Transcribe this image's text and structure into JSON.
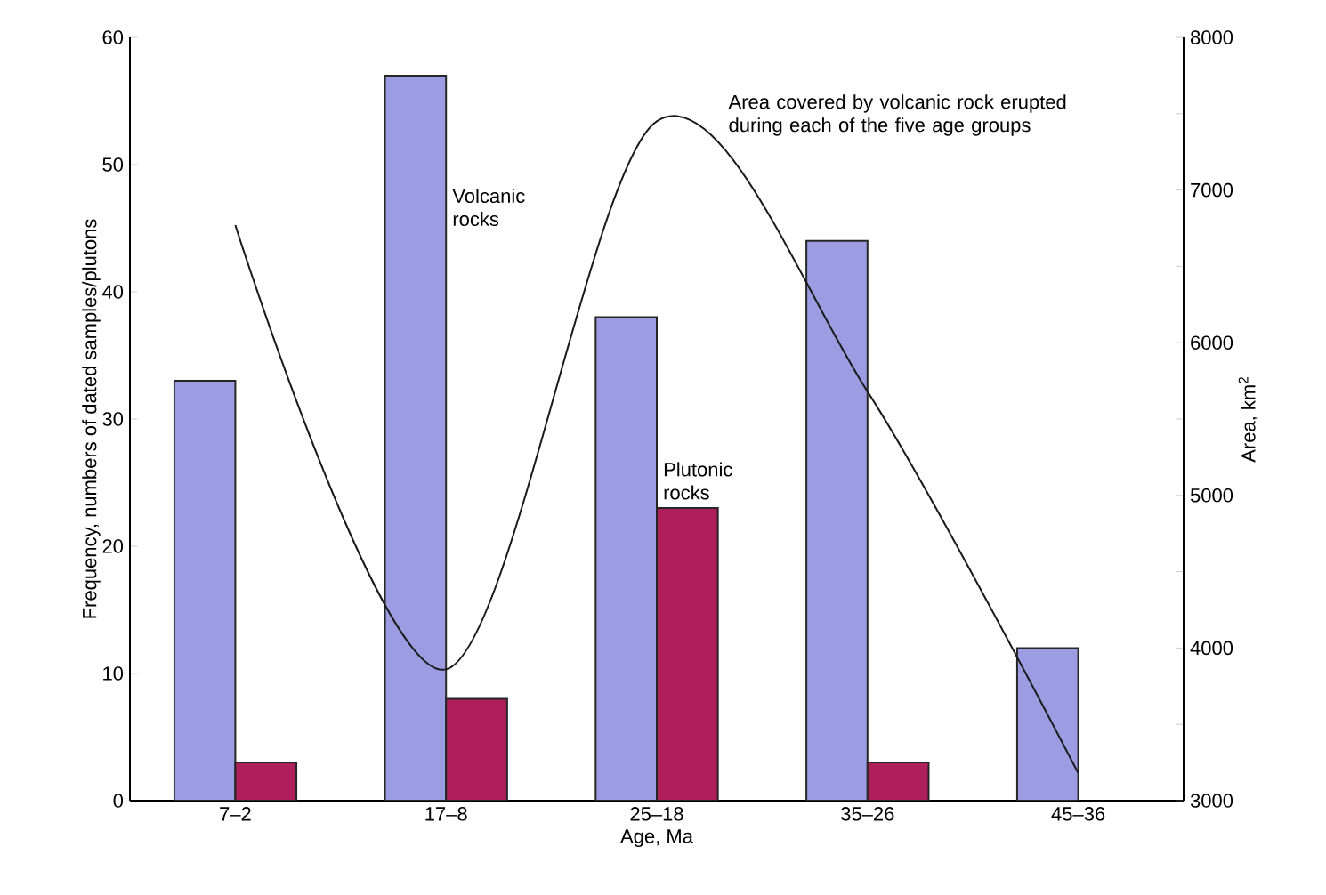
{
  "chart_data": {
    "type": "bar",
    "xlabel": "Age, Ma",
    "ylabel": "Frequency, numbers of dated samples/plutons",
    "y2label": "Area, km$^{2}$",
    "categories": [
      "7–2",
      "17–8",
      "25–18",
      "35–26",
      "45–36"
    ],
    "series": [
      {
        "name": "Volcanic rocks",
        "color": "#9c9ce2",
        "values": [
          33,
          57,
          38,
          44,
          12
        ]
      },
      {
        "name": "Plutonic rocks",
        "color": "#ae1f5c",
        "values": [
          3,
          8,
          23,
          3,
          null
        ]
      },
      {
        "name": "Area covered by volcanic rock erupted during each of the five age groups",
        "type": "line",
        "axis": "y2",
        "color": "#1a1a1a",
        "values": [
          6770,
          3860,
          7450,
          5680,
          3180
        ]
      }
    ],
    "ylim": [
      0,
      60
    ],
    "yticks": [
      0,
      10,
      20,
      30,
      40,
      50,
      60
    ],
    "y2lim": [
      3000,
      8000
    ],
    "y2ticks": [
      3000,
      {
        "value": 3500,
        "label": null
      },
      4000,
      {
        "value": 4500,
        "label": null
      },
      5000,
      {
        "value": 5500,
        "label": null
      },
      6000,
      {
        "value": 6500,
        "label": null
      },
      7000,
      {
        "value": 7500,
        "label": null
      },
      8000
    ],
    "legend": false,
    "grid": false
  }
}
